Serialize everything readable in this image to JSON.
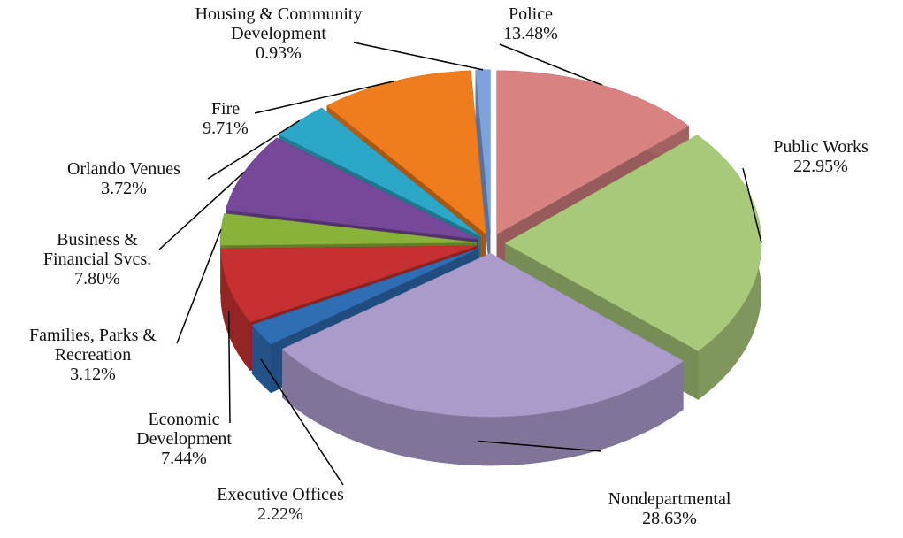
{
  "chart_data": {
    "type": "pie",
    "categories": [
      "Police",
      "Public Works",
      "Nondepartmental",
      "Executive Offices",
      "Economic Development",
      "Families, Parks & Recreation",
      "Business & Financial Svcs.",
      "Orlando Venues",
      "Fire",
      "Housing & Community Development"
    ],
    "values": [
      13.48,
      22.95,
      28.63,
      2.22,
      7.44,
      3.12,
      7.8,
      3.72,
      9.71,
      0.93
    ],
    "value_labels": [
      "13.48%",
      "22.95%",
      "28.63%",
      "2.22%",
      "7.44%",
      "3.12%",
      "7.80%",
      "3.72%",
      "9.71%",
      "0.93%"
    ],
    "colors": [
      "#d98282",
      "#a9c97a",
      "#ab9bcb",
      "#2f6db5",
      "#c63030",
      "#89b23b",
      "#76489a",
      "#2ca7c7",
      "#ef7c1d",
      "#7ea2dc"
    ]
  }
}
